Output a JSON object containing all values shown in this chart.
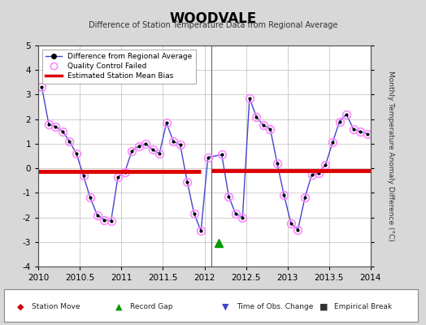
{
  "title": "WOODVALE",
  "subtitle": "Difference of Station Temperature Data from Regional Average",
  "ylabel_right": "Monthly Temperature Anomaly Difference (°C)",
  "xlim": [
    2010,
    2014
  ],
  "ylim": [
    -4,
    5
  ],
  "yticks": [
    -4,
    -3,
    -2,
    -1,
    0,
    1,
    2,
    3,
    4,
    5
  ],
  "xticks": [
    2010,
    2010.5,
    2011,
    2011.5,
    2012,
    2012.5,
    2013,
    2013.5,
    2014
  ],
  "background_color": "#d8d8d8",
  "plot_bg_color": "#ffffff",
  "line_color": "#4444cc",
  "line_marker_color": "#000000",
  "qc_circle_color": "#ff88ff",
  "bias_color": "#dd0000",
  "bias_segments": [
    {
      "x_start": 2010.0,
      "x_end": 2011.958,
      "y": -0.12
    },
    {
      "x_start": 2012.083,
      "x_end": 2014.0,
      "y": -0.08
    }
  ],
  "vertical_line_x": 2012.083,
  "record_gap_x": 2012.17,
  "record_gap_y": -3.05,
  "data_x": [
    2010.042,
    2010.125,
    2010.208,
    2010.292,
    2010.375,
    2010.458,
    2010.542,
    2010.625,
    2010.708,
    2010.792,
    2010.875,
    2010.958,
    2011.042,
    2011.125,
    2011.208,
    2011.292,
    2011.375,
    2011.458,
    2011.542,
    2011.625,
    2011.708,
    2011.792,
    2011.875,
    2011.958,
    2012.042,
    2012.208,
    2012.292,
    2012.375,
    2012.458,
    2012.542,
    2012.625,
    2012.708,
    2012.792,
    2012.875,
    2012.958,
    2013.042,
    2013.125,
    2013.208,
    2013.292,
    2013.375,
    2013.458,
    2013.542,
    2013.625,
    2013.708,
    2013.792,
    2013.875,
    2013.958
  ],
  "data_y": [
    3.3,
    1.8,
    1.7,
    1.5,
    1.1,
    0.6,
    -0.3,
    -1.2,
    -1.9,
    -2.1,
    -2.15,
    -0.35,
    -0.15,
    0.7,
    0.9,
    1.0,
    0.75,
    0.6,
    1.85,
    1.1,
    0.95,
    -0.55,
    -1.85,
    -2.55,
    0.45,
    0.55,
    -1.15,
    -1.85,
    -2.0,
    2.85,
    2.1,
    1.75,
    1.6,
    0.2,
    -1.1,
    -2.25,
    -2.5,
    -1.2,
    -0.25,
    -0.2,
    0.15,
    1.05,
    1.9,
    2.2,
    1.6,
    1.5,
    1.4
  ],
  "qc_failed_indices": [
    0,
    1,
    2,
    3,
    4,
    5,
    6,
    7,
    8,
    9,
    10,
    11,
    12,
    13,
    14,
    15,
    16,
    17,
    18,
    19,
    20,
    21,
    22,
    23,
    24,
    25,
    26,
    27,
    28,
    29,
    30,
    31,
    32,
    33,
    34,
    35,
    36,
    37,
    38,
    39,
    40,
    41,
    42,
    43,
    44,
    45,
    46
  ],
  "bottom_items": [
    {
      "symbol": "◆",
      "color": "#cc0000",
      "label": "Station Move"
    },
    {
      "symbol": "▲",
      "color": "#009900",
      "label": "Record Gap"
    },
    {
      "symbol": "▼",
      "color": "#4444cc",
      "label": "Time of Obs. Change"
    },
    {
      "symbol": "■",
      "color": "#333333",
      "label": "Empirical Break"
    }
  ]
}
